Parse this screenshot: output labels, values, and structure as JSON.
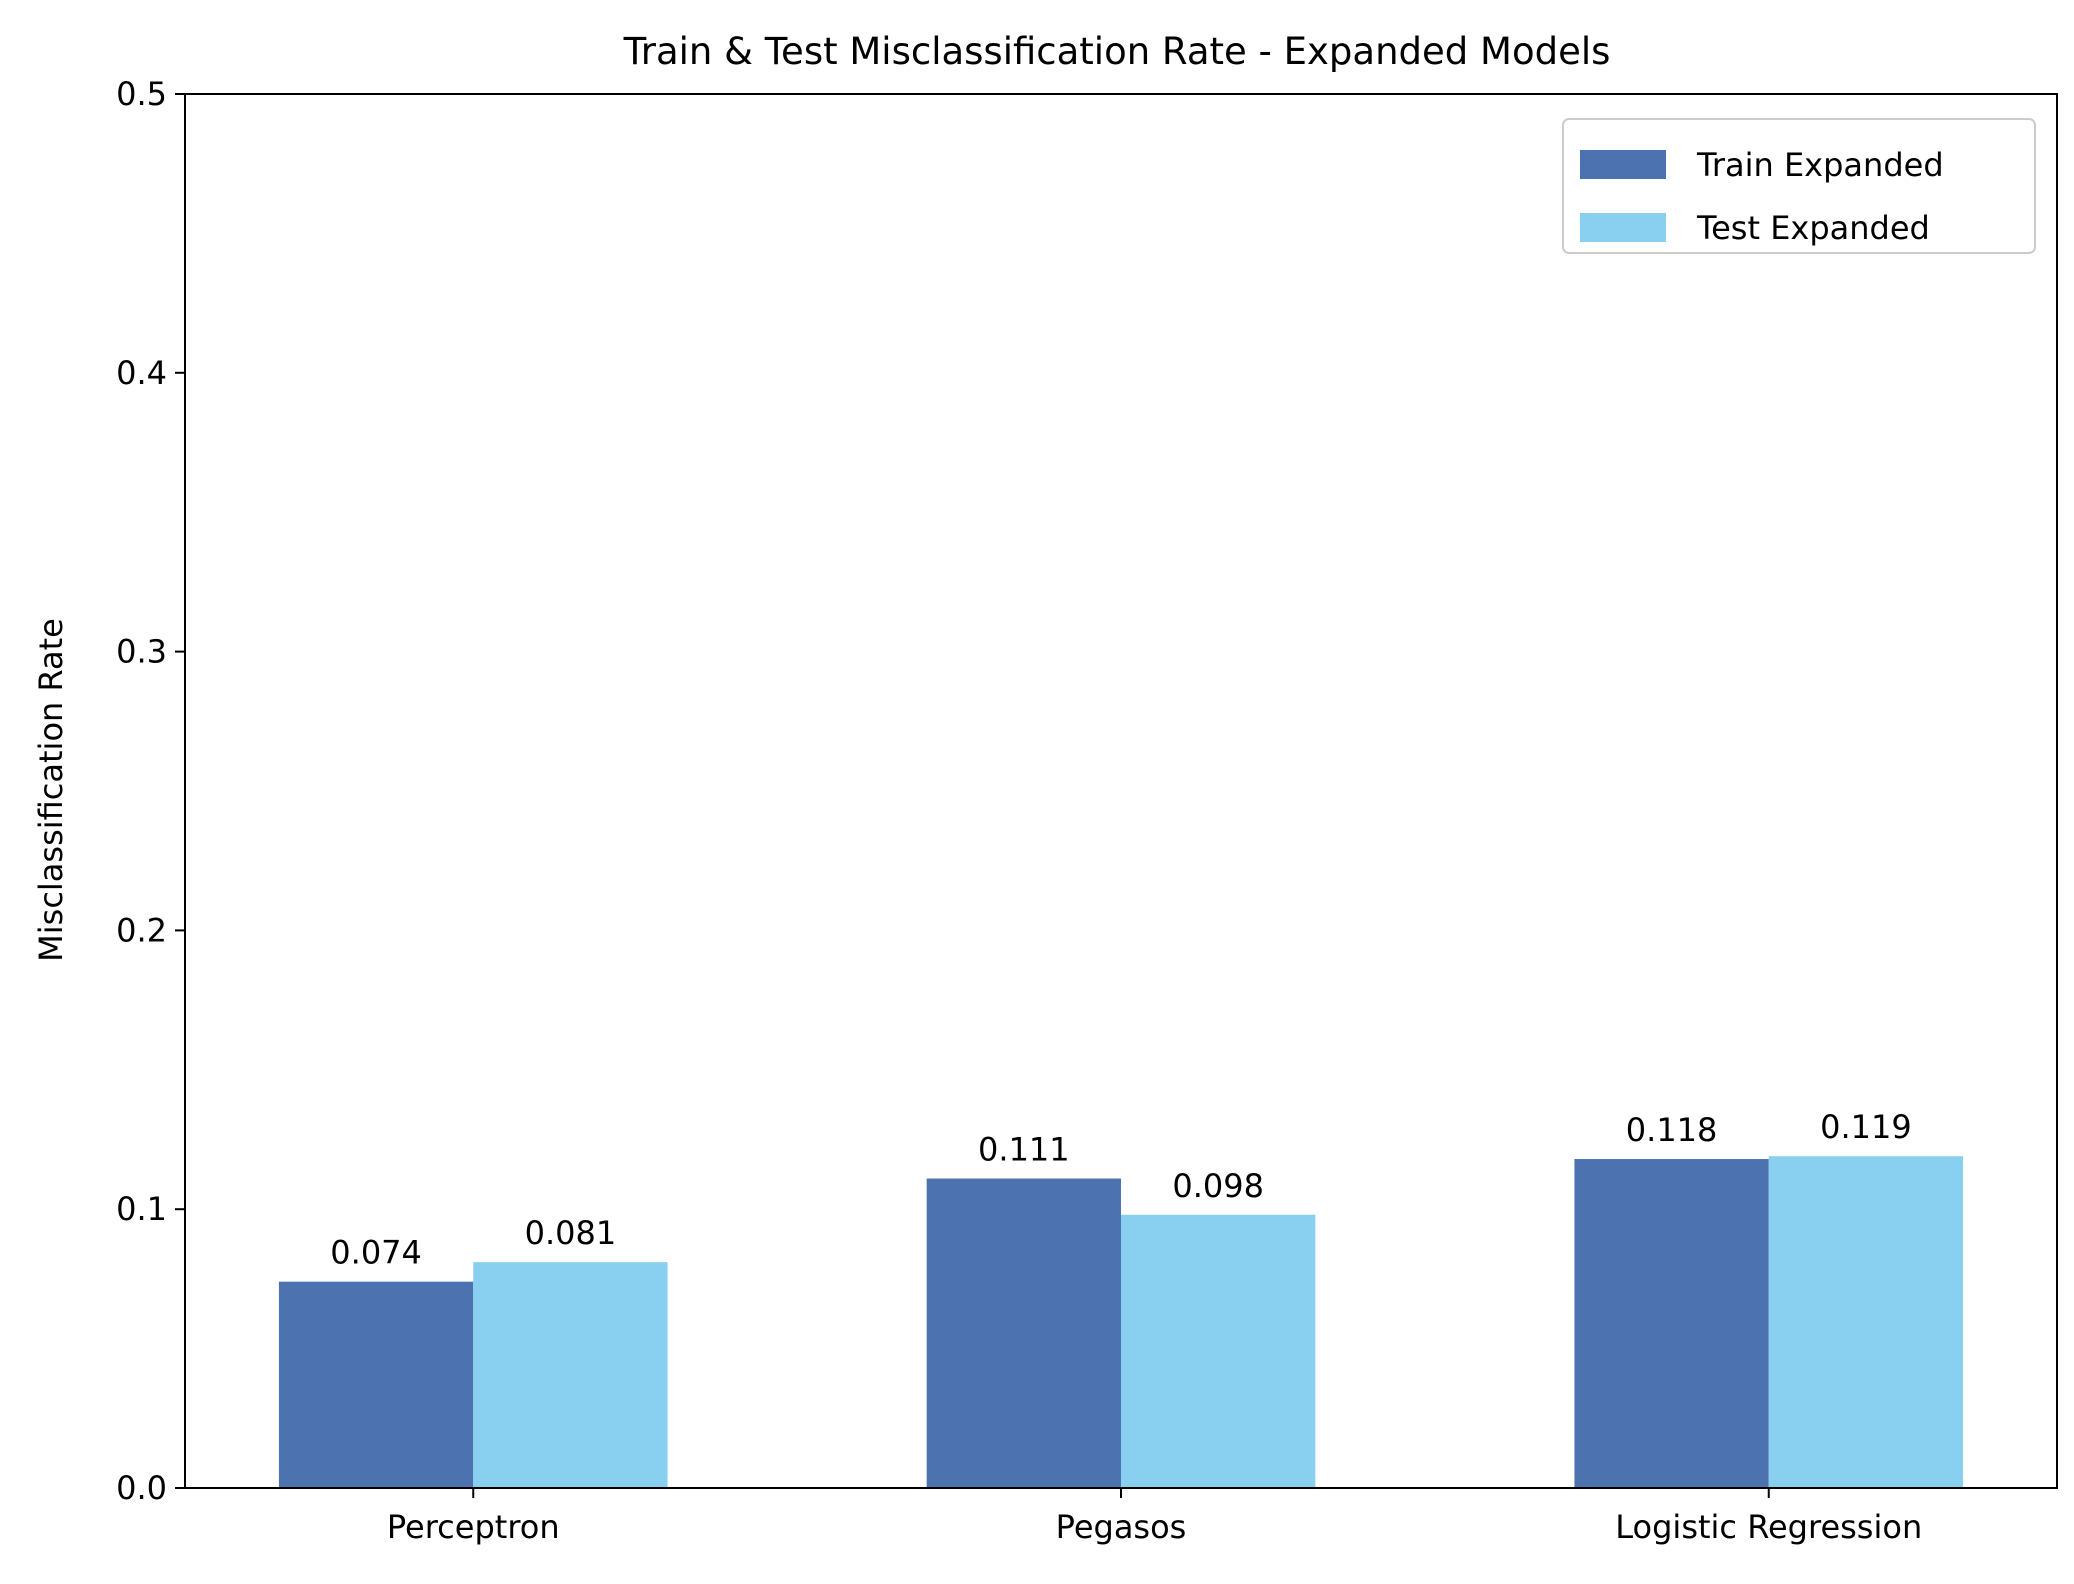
{
  "chart_data": {
    "type": "bar",
    "title": "Train & Test Misclassification Rate - Expanded Models",
    "xlabel": "",
    "ylabel": "Misclassification Rate",
    "categories": [
      "Perceptron",
      "Pegasos",
      "Logistic Regression"
    ],
    "series": [
      {
        "name": "Train Expanded",
        "color": "#4c72b0",
        "values": [
          0.074,
          0.111,
          0.118
        ],
        "labels": [
          "0.074",
          "0.111",
          "0.118"
        ]
      },
      {
        "name": "Test Expanded",
        "color": "#89cff0",
        "values": [
          0.081,
          0.098,
          0.119
        ],
        "labels": [
          "0.081",
          "0.098",
          "0.119"
        ]
      }
    ],
    "ylim": [
      0,
      0.5
    ],
    "yticks": [
      0.0,
      0.1,
      0.2,
      0.3,
      0.4,
      0.5
    ],
    "ytick_labels": [
      "0.0",
      "0.1",
      "0.2",
      "0.3",
      "0.4",
      "0.5"
    ],
    "grid": false,
    "legend_position": "top-right"
  }
}
